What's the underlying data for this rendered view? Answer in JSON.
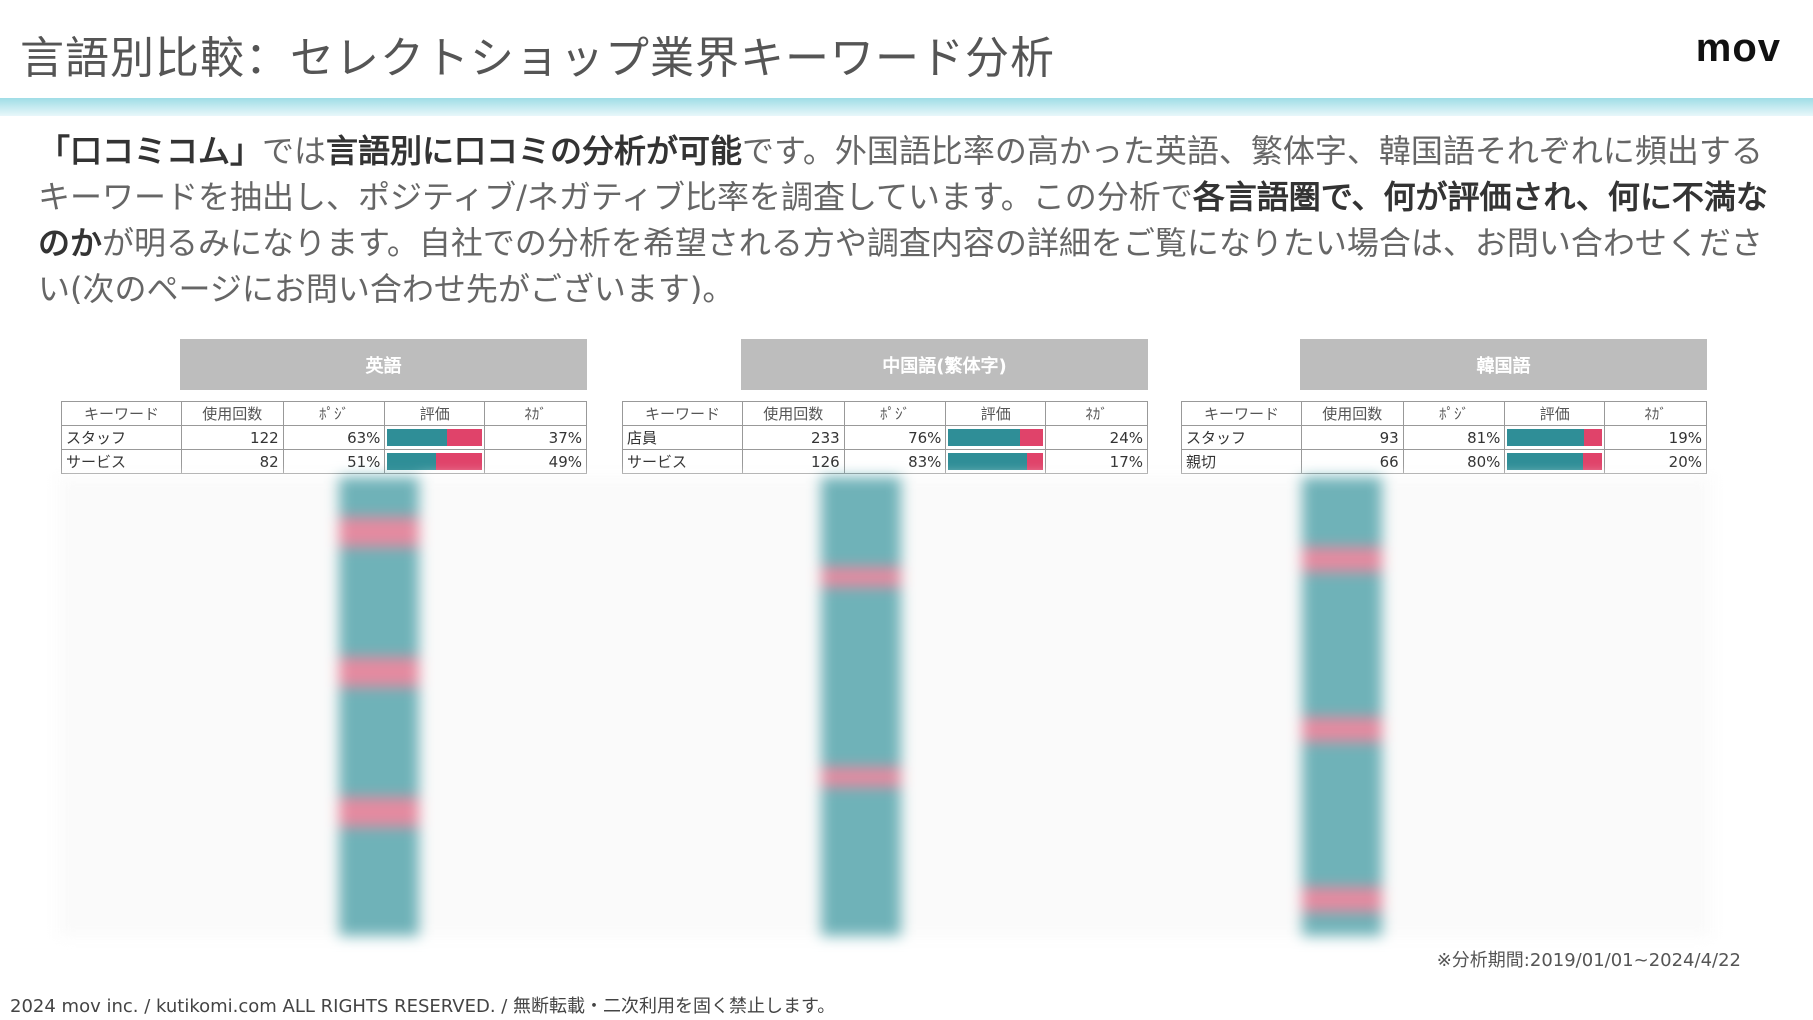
{
  "header": {
    "title": "言語別比較：セレクトショップ業界キーワード分析",
    "logo": "mov"
  },
  "intro": {
    "segments": [
      {
        "text": "「口コミコム」",
        "bold": true
      },
      {
        "text": "では",
        "bold": false
      },
      {
        "text": "言語別に口コミの分析が可能",
        "bold": true
      },
      {
        "text": "です。外国語比率の高かった英語、繁体字、韓国語それぞれに頻出するキーワードを抽出し、ポジティブ/ネガティブ比率を調査しています。この分析で",
        "bold": false
      },
      {
        "text": "各言語圏で、何が評価され、何に不満なのか",
        "bold": true
      },
      {
        "text": "が明るみになります。自社での分析を希望される方や調査内容の詳細をご覧になりたい場合は、お問い合わせください(次のページにお問い合わせ先がございます)。",
        "bold": false
      }
    ]
  },
  "tables": [
    {
      "title": "英語",
      "columns": [
        "キーワード",
        "使用回数",
        "ﾎﾟｼﾞ",
        "評価",
        "ﾈｶﾞ"
      ],
      "rows": [
        {
          "keyword": "スタッフ",
          "count": 122,
          "positive": 63,
          "positive_label": "63%",
          "negative": 37,
          "negative_label": "37%"
        },
        {
          "keyword": "サービス",
          "count": 82,
          "positive": 51,
          "positive_label": "51%",
          "negative": 49,
          "negative_label": "49%"
        }
      ]
    },
    {
      "title": "中国語(繁体字)",
      "columns": [
        "キーワード",
        "使用回数",
        "ﾎﾟｼﾞ",
        "評価",
        "ﾈｶﾞ"
      ],
      "rows": [
        {
          "keyword": "店員",
          "count": 233,
          "positive": 76,
          "positive_label": "76%",
          "negative": 24,
          "negative_label": "24%"
        },
        {
          "keyword": "サービス",
          "count": 126,
          "positive": 83,
          "positive_label": "83%",
          "negative": 17,
          "negative_label": "17%"
        }
      ]
    },
    {
      "title": "韓国語",
      "columns": [
        "キーワード",
        "使用回数",
        "ﾎﾟｼﾞ",
        "評価",
        "ﾈｶﾞ"
      ],
      "rows": [
        {
          "keyword": "スタッフ",
          "count": 93,
          "positive": 81,
          "positive_label": "81%",
          "negative": 19,
          "negative_label": "19%"
        },
        {
          "keyword": "親切",
          "count": 66,
          "positive": 80,
          "positive_label": "80%",
          "negative": 20,
          "negative_label": "20%"
        }
      ]
    }
  ],
  "note": "※分析期間:2019/01/01~2024/4/22",
  "footer": "2024 mov inc. / kutikomi.com ALL RIGHTS RESERVED. / 無断転載・二次利用を固く禁止します。"
}
